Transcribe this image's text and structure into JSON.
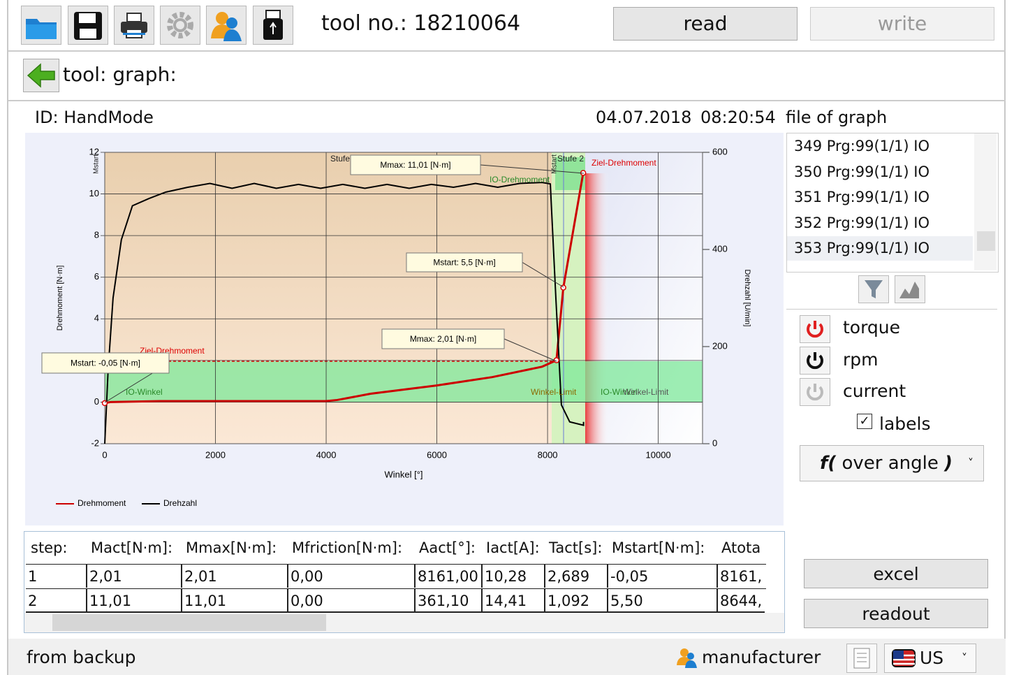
{
  "toolbar": {
    "tool_no": "tool no.: 18210064",
    "read": "read",
    "write": "write"
  },
  "nav": {
    "title": "tool: graph:"
  },
  "info": {
    "id": "ID: HandMode",
    "date": "04.07.2018",
    "time": "08:20:54",
    "file_label": "file of graph"
  },
  "files": [
    "349 Prg:99(1/1) IO",
    "350 Prg:99(1/1) IO",
    "351 Prg:99(1/1) IO",
    "352 Prg:99(1/1) IO",
    "353 Prg:99(1/1) IO"
  ],
  "controls": {
    "torque": "torque",
    "rpm": "rpm",
    "current": "current",
    "labels": "labels",
    "mode": {
      "prefix": "f(",
      "text": " over angle ",
      "suffix": ")"
    },
    "excel": "excel",
    "readout": "readout"
  },
  "chart_data": {
    "type": "line",
    "xlabel": "Winkel [°]",
    "ylabel": "Drehmoment [N·m]",
    "y2label": "Drehzahl [U/min]",
    "xlim": [
      0,
      10800
    ],
    "ylim": [
      -2,
      12
    ],
    "y2lim": [
      0,
      600
    ],
    "xticks": [
      0,
      2000,
      4000,
      6000,
      8000,
      10000
    ],
    "yticks": [
      -2,
      0,
      2,
      4,
      6,
      8,
      10,
      12
    ],
    "y2ticks": [
      0,
      200,
      400,
      600
    ],
    "grid": true,
    "legend": "bottom left",
    "series": [
      {
        "name": "Drehmoment",
        "color": "#cc0000",
        "axis": "y",
        "x": [
          0,
          100,
          1000,
          2000,
          4000,
          4200,
          4800,
          6000,
          7000,
          7900,
          8161,
          8285,
          8644
        ],
        "values": [
          -0.05,
          0.0,
          0.05,
          0.05,
          0.05,
          0.1,
          0.4,
          0.8,
          1.2,
          1.7,
          2.01,
          5.5,
          11.01
        ]
      },
      {
        "name": "Drehzahl",
        "color": "#000000",
        "axis": "y2",
        "x": [
          0,
          60,
          150,
          300,
          500,
          800,
          1100,
          1500,
          1900,
          2300,
          2700,
          3100,
          3500,
          3900,
          4300,
          4700,
          5100,
          5500,
          5900,
          6300,
          6700,
          7100,
          7500,
          7900,
          8050,
          8150,
          8250,
          8400,
          8650,
          8650
        ],
        "values": [
          0,
          150,
          300,
          420,
          490,
          505,
          518,
          528,
          536,
          526,
          536,
          526,
          534,
          526,
          534,
          526,
          534,
          526,
          534,
          528,
          536,
          528,
          536,
          538,
          535,
          300,
          80,
          45,
          38,
          45
        ]
      }
    ],
    "annotations": [
      "Stufe 1",
      "Stufe 2",
      "Mmax: 11,01 [N·m]",
      "IO-Drehmoment",
      "Ziel-Drehmoment",
      "Mstart: 5,5 [N·m]",
      "Mmax: 2,01 [N·m]",
      "Ziel-Drehmoment",
      "Mstart: -0,05 [N·m]",
      "IO-Winkel",
      "Winkel-Limit",
      "IO-Winkel",
      "Winkel-Limit",
      "Mstart",
      "Mstart"
    ]
  },
  "table": {
    "header": [
      "step:",
      "Mact[N·m]:",
      "Mmax[N·m]:",
      "Mfriction[N·m]:",
      "Aact[°]:",
      "Iact[A]:",
      "Tact[s]:",
      "Mstart[N·m]:",
      "Atota"
    ],
    "rows": [
      [
        "1",
        "2,01",
        "2,01",
        "0,00",
        "8161,00",
        "10,28",
        "2,689",
        "-0,05",
        "8161,"
      ],
      [
        "2",
        "11,01",
        "11,01",
        "0,00",
        "361,10",
        "14,41",
        "1,092",
        "5,50",
        "8644,"
      ]
    ]
  },
  "status": {
    "source": "from backup",
    "user": "manufacturer",
    "lang": "US"
  }
}
